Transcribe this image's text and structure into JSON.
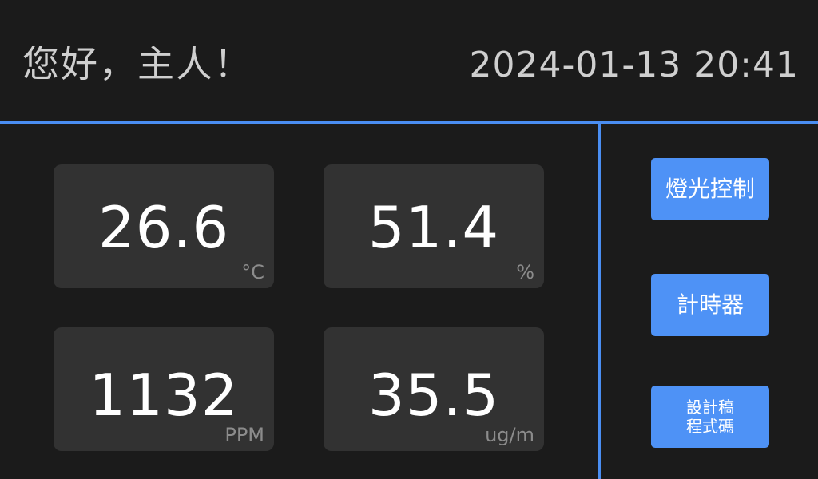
{
  "header": {
    "greeting": "您好，主人！",
    "datetime": "2024-01-13 20:41"
  },
  "sensors": {
    "temperature": {
      "value": "26.6",
      "unit": "°C"
    },
    "humidity": {
      "value": "51.4",
      "unit": "%"
    },
    "co2": {
      "value": "1132",
      "unit": "PPM"
    },
    "pm": {
      "value": "35.5",
      "unit": "ug/m"
    }
  },
  "buttons": {
    "light": {
      "label": "燈光控制"
    },
    "timer": {
      "label": "計時器"
    },
    "code": {
      "line1": "設計稿",
      "line2": "程式碼"
    }
  },
  "colors": {
    "background": "#1b1b1b",
    "card": "#323232",
    "accent_line": "#4a8ef2",
    "button": "#4e92f6",
    "header_text": "#cfcfcf",
    "unit_text": "#8c8c8c"
  }
}
